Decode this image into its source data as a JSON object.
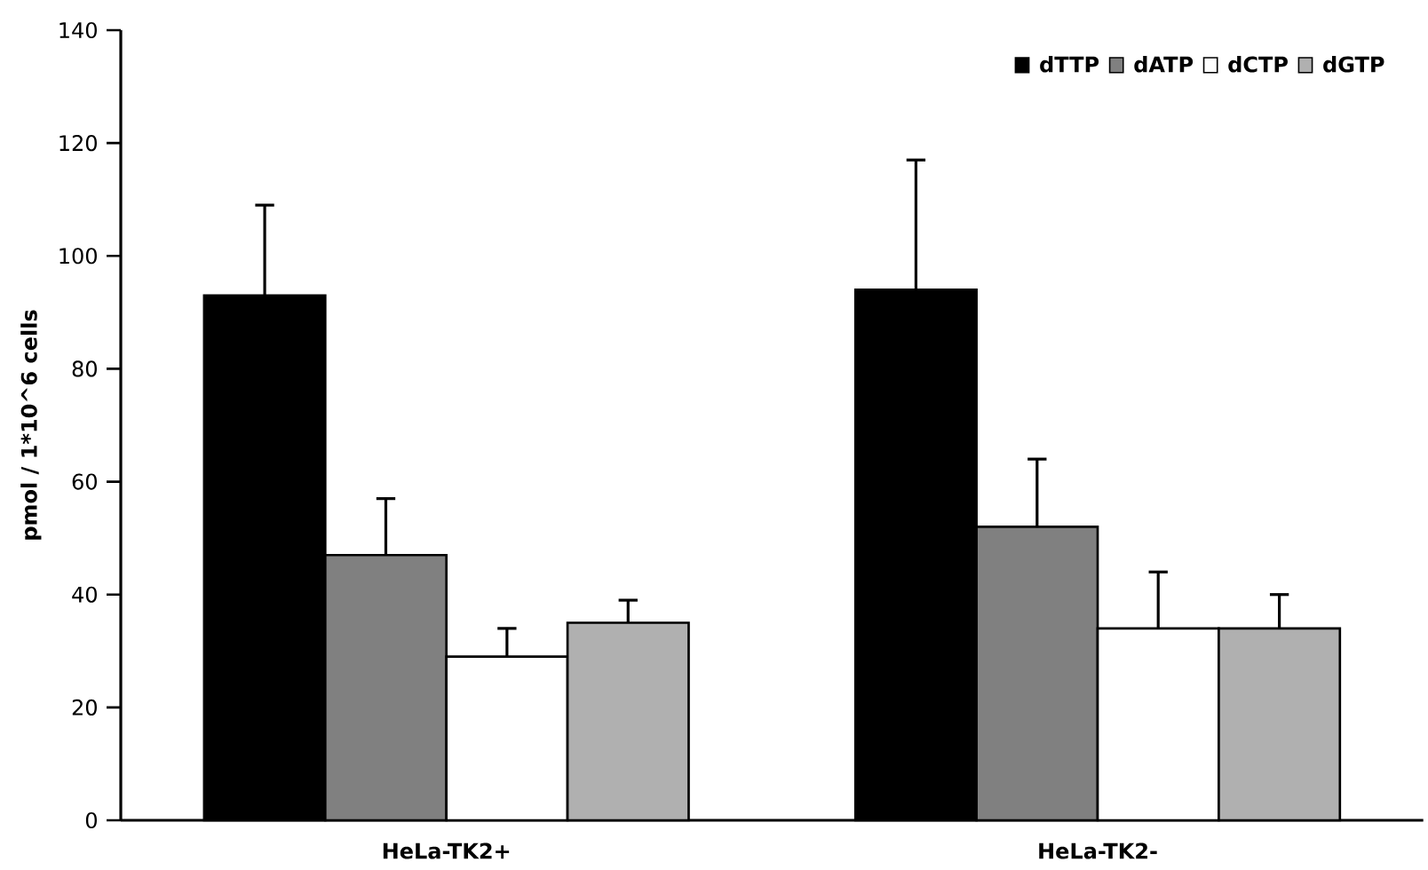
{
  "chart_data": {
    "type": "bar",
    "ylabel": "pmol / 1*10^6 cells",
    "categories": [
      "HeLa-TK2+",
      "HeLa-TK2-"
    ],
    "series": [
      {
        "name": "dTTP",
        "color": "#000000",
        "values": [
          93,
          94
        ],
        "errors": [
          [
            93,
            109
          ],
          [
            94,
            117
          ]
        ]
      },
      {
        "name": "dATP",
        "color": "#808080",
        "values": [
          47,
          52
        ],
        "errors": [
          [
            47,
            57
          ],
          [
            52,
            64
          ]
        ]
      },
      {
        "name": "dCTP",
        "color": "#ffffff",
        "values": [
          29,
          34
        ],
        "errors": [
          [
            29,
            34
          ],
          [
            34,
            44
          ]
        ]
      },
      {
        "name": "dGTP",
        "color": "#b0b0b0",
        "values": [
          35,
          34
        ],
        "errors": [
          [
            35,
            39
          ],
          [
            34,
            40
          ]
        ]
      }
    ],
    "ylim": [
      0,
      140
    ],
    "yticks": [
      0,
      20,
      40,
      60,
      80,
      100,
      120,
      140
    ],
    "grid": false,
    "legend": "top right"
  }
}
